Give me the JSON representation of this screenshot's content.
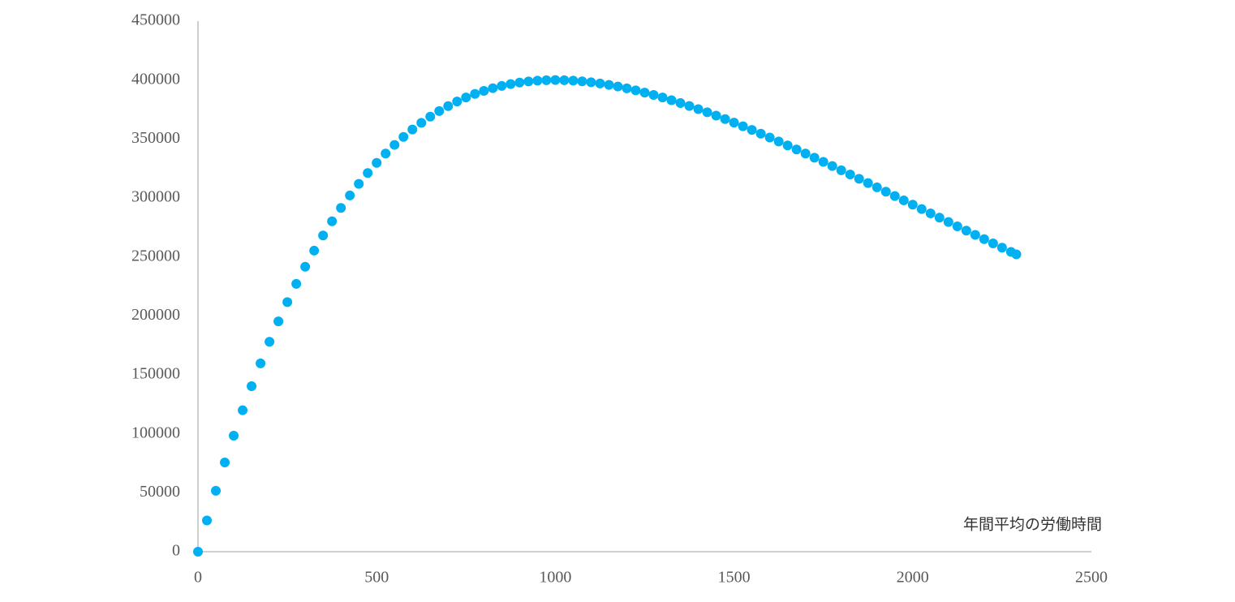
{
  "chart_data": {
    "type": "scatter",
    "color": "#00b0f0",
    "x_label": "年間平均の労働時間",
    "xlim": [
      0,
      2500
    ],
    "xticks": [
      0,
      500,
      1000,
      1500,
      2000,
      2500
    ],
    "ylim": [
      0,
      450000
    ],
    "yticks": [
      0,
      50000,
      100000,
      150000,
      200000,
      250000,
      300000,
      350000,
      400000,
      450000
    ],
    "grid": false,
    "x": [
      0,
      25,
      50,
      75,
      100,
      125,
      150,
      175,
      200,
      225,
      250,
      275,
      300,
      325,
      350,
      375,
      400,
      425,
      450,
      475,
      500,
      525,
      550,
      575,
      600,
      625,
      650,
      675,
      700,
      725,
      750,
      775,
      800,
      825,
      850,
      875,
      900,
      925,
      950,
      975,
      1000,
      1025,
      1050,
      1075,
      1100,
      1125,
      1150,
      1175,
      1200,
      1225,
      1250,
      1275,
      1300,
      1325,
      1350,
      1375,
      1400,
      1425,
      1450,
      1475,
      1500,
      1525,
      1550,
      1575,
      1600,
      1625,
      1650,
      1675,
      1700,
      1725,
      1750,
      1775,
      1800,
      1825,
      1850,
      1875,
      1900,
      1925,
      1950,
      1975,
      2000,
      2025,
      2050,
      2075,
      2100,
      2125,
      2150,
      2175,
      2200,
      2225,
      2250,
      2275,
      2290
    ],
    "values": [
      0,
      26511,
      51714,
      75655,
      98383,
      119942,
      140377,
      159730,
      178041,
      195351,
      211698,
      227118,
      241647,
      255321,
      268173,
      280234,
      291536,
      302108,
      311982,
      321183,
      329741,
      337679,
      345025,
      351802,
      358034,
      363744,
      368953,
      373684,
      377956,
      381790,
      385204,
      388216,
      390844,
      393104,
      395019,
      396597,
      397857,
      398812,
      399478,
      399868,
      399995,
      399872,
      399512,
      398925,
      398124,
      397118,
      395921,
      394540,
      392986,
      391269,
      389396,
      387377,
      385223,
      382935,
      380527,
      378005,
      375375,
      372644,
      369820,
      366908,
      363914,
      360844,
      357705,
      354501,
      351236,
      347917,
      344546,
      341131,
      337675,
      334180,
      330653,
      327097,
      323513,
      319909,
      316283,
      312643,
      308990,
      305326,
      301654,
      297978,
      294300,
      290622,
      286946,
      283273,
      279607,
      275951,
      272304,
      268669,
      265048,
      261440,
      257851,
      254280,
      252144
    ]
  }
}
